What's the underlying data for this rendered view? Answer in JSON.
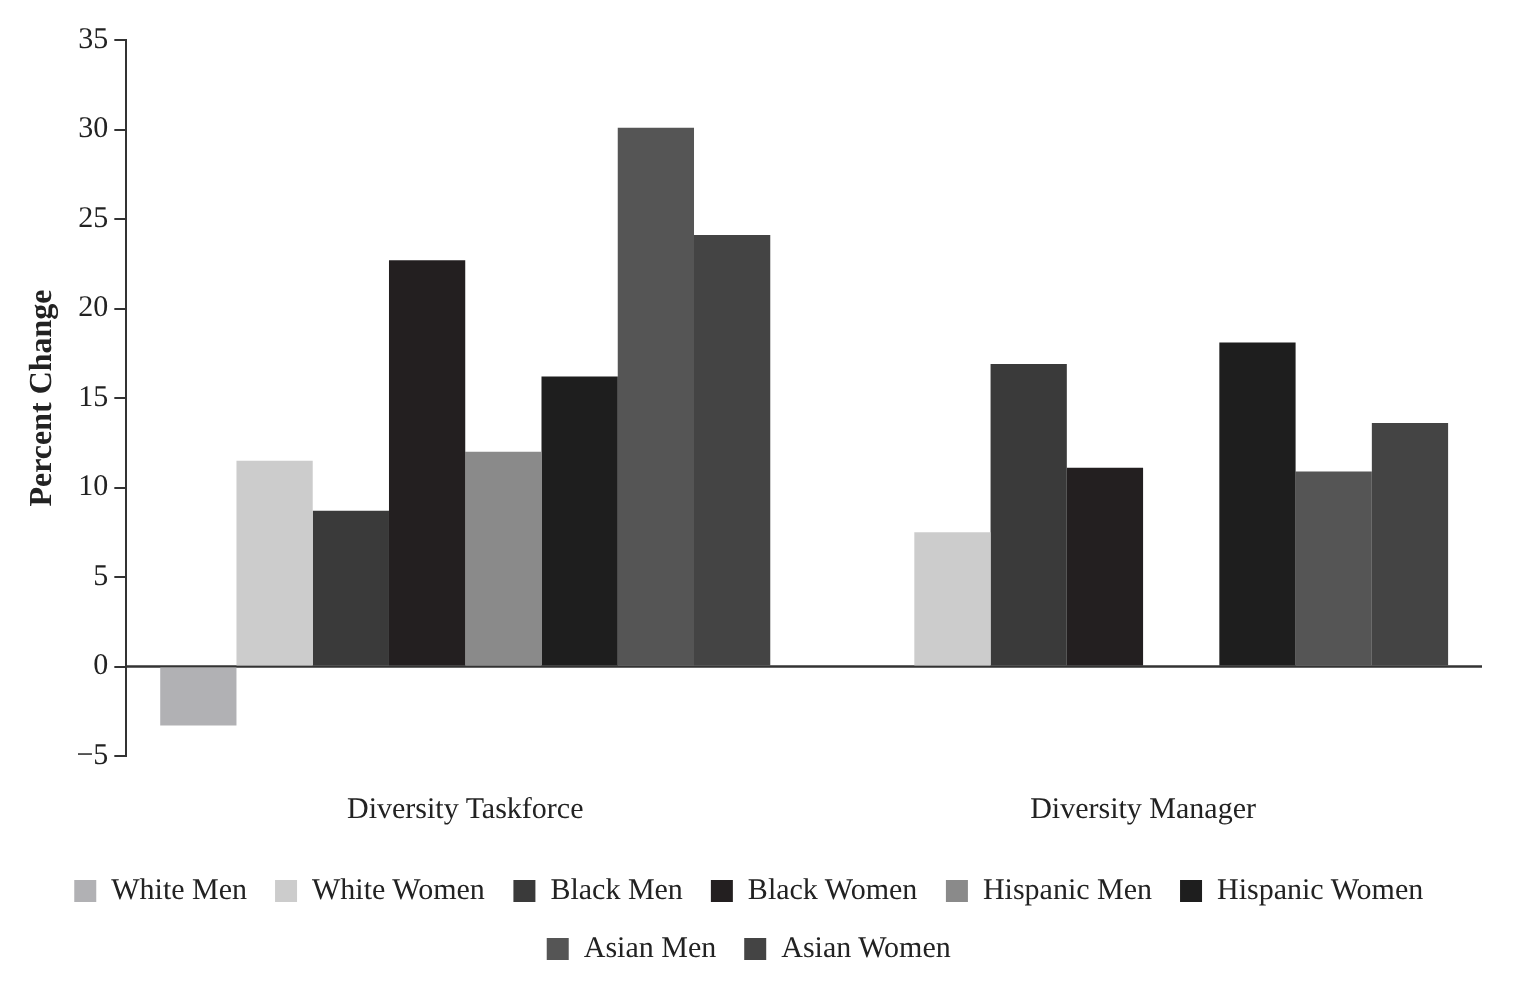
{
  "chart_data": {
    "type": "bar",
    "ylabel": "Percent Change",
    "categories": [
      "Diversity Taskforce",
      "Diversity Manager"
    ],
    "series": [
      {
        "name": "White Men",
        "color": "#b1b1b4",
        "values": [
          -3.3,
          null
        ]
      },
      {
        "name": "White Women",
        "color": "#cccccc",
        "values": [
          11.5,
          7.5
        ]
      },
      {
        "name": "Black Men",
        "color": "#3a3a3a",
        "values": [
          8.7,
          16.9
        ]
      },
      {
        "name": "Black Women",
        "color": "#231f20",
        "values": [
          22.7,
          11.1
        ]
      },
      {
        "name": "Hispanic Men",
        "color": "#8a8a8a",
        "values": [
          12.0,
          null
        ]
      },
      {
        "name": "Hispanic Women",
        "color": "#1e1e1e",
        "values": [
          16.2,
          18.1
        ]
      },
      {
        "name": "Asian Men",
        "color": "#555555",
        "values": [
          30.1,
          10.9
        ]
      },
      {
        "name": "Asian Women",
        "color": "#444444",
        "values": [
          24.1,
          13.6
        ]
      }
    ],
    "ylim": [
      -5,
      35
    ],
    "yticks": [
      {
        "value": -5,
        "label": "−5"
      },
      0,
      5,
      10,
      15,
      20,
      25,
      30,
      35
    ],
    "ref_lines": [
      {
        "axis": "y",
        "value": 0,
        "color": "#333333"
      }
    ],
    "grid": false,
    "legend": "bottom"
  }
}
